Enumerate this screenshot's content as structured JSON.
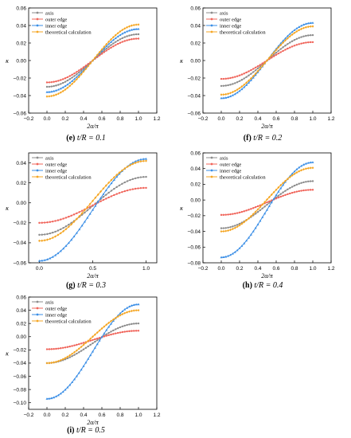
{
  "colors": {
    "axis": "#8c8c8c",
    "outer edge": "#f0645a",
    "inner edge": "#3a8ee6",
    "theoretical calculation": "#f5a623"
  },
  "chart_data": [
    {
      "type": "line",
      "caption_tag": "(e)",
      "caption_text": "t/R = 0.1",
      "xlabel": "2α/π",
      "ylabel": "κ",
      "xlim": [
        -0.2,
        1.2
      ],
      "xticks": [
        "−0.2",
        "0.0",
        "0.2",
        "0.4",
        "0.6",
        "0.8",
        "1.0",
        "1.2"
      ],
      "ylim": [
        -0.06,
        0.06
      ],
      "yticks": [
        "−0.06",
        "−0.04",
        "−0.02",
        "0.00",
        "0.02",
        "0.04",
        "0.06"
      ],
      "legend_position": "top-left",
      "series": [
        {
          "name": "axis",
          "start": -0.03,
          "end": 0.03
        },
        {
          "name": "outer edge",
          "start": -0.025,
          "end": 0.025
        },
        {
          "name": "inner edge",
          "start": -0.036,
          "end": 0.036
        },
        {
          "name": "theoretical calculation",
          "start": -0.041,
          "end": 0.041
        }
      ]
    },
    {
      "type": "line",
      "caption_tag": "(f)",
      "caption_text": "t/R = 0.2",
      "xlabel": "2α/π",
      "ylabel": "κ",
      "xlim": [
        -0.2,
        1.2
      ],
      "xticks": [
        "−0.2",
        "0.0",
        "0.2",
        "0.4",
        "0.6",
        "0.8",
        "1.0",
        "1.2"
      ],
      "ylim": [
        -0.06,
        0.06
      ],
      "yticks": [
        "−0.06",
        "−0.04",
        "−0.02",
        "0.00",
        "0.02",
        "0.04",
        "0.06"
      ],
      "legend_position": "top-left",
      "series": [
        {
          "name": "axis",
          "start": -0.029,
          "end": 0.029
        },
        {
          "name": "outer edge",
          "start": -0.021,
          "end": 0.021
        },
        {
          "name": "inner edge",
          "start": -0.043,
          "end": 0.043
        },
        {
          "name": "theoretical calculation",
          "start": -0.039,
          "end": 0.039
        }
      ]
    },
    {
      "type": "line",
      "caption_tag": "(g)",
      "caption_text": "t/R = 0.3",
      "xlabel": "2α/π",
      "ylabel": "κ",
      "xlim": [
        -0.1,
        1.1
      ],
      "xticks": [
        "0.0",
        "0.5",
        "1.0"
      ],
      "xtick_values": [
        0.0,
        0.5,
        1.0
      ],
      "ylim": [
        -0.06,
        0.05
      ],
      "yticks": [
        "−0.06",
        "−0.04",
        "−0.02",
        "0.00",
        "0.02",
        "0.04"
      ],
      "ytick_values": [
        -0.06,
        -0.04,
        -0.02,
        0.0,
        0.02,
        0.04
      ],
      "legend_position": "top-left",
      "series": [
        {
          "name": "axis",
          "start": -0.032,
          "end": 0.026
        },
        {
          "name": "outer edge",
          "start": -0.02,
          "end": 0.015
        },
        {
          "name": "inner edge",
          "start": -0.058,
          "end": 0.044
        },
        {
          "name": "theoretical calculation",
          "start": -0.038,
          "end": 0.042
        }
      ]
    },
    {
      "type": "line",
      "caption_tag": "(h)",
      "caption_text": "t/R = 0.4",
      "xlabel": "2α/π",
      "ylabel": "κ",
      "xlim": [
        -0.2,
        1.2
      ],
      "xticks": [
        "−0.2",
        "0.0",
        "0.2",
        "0.4",
        "0.6",
        "0.8",
        "1.0",
        "1.2"
      ],
      "ylim": [
        -0.08,
        0.06
      ],
      "yticks": [
        "−0.08",
        "−0.06",
        "−0.04",
        "−0.02",
        "0.00",
        "0.02",
        "0.04",
        "0.06"
      ],
      "legend_position": "top-left",
      "series": [
        {
          "name": "axis",
          "start": -0.036,
          "end": 0.024
        },
        {
          "name": "outer edge",
          "start": -0.019,
          "end": 0.013
        },
        {
          "name": "inner edge",
          "start": -0.073,
          "end": 0.048
        },
        {
          "name": "theoretical calculation",
          "start": -0.04,
          "end": 0.041
        }
      ]
    },
    {
      "type": "line",
      "caption_tag": "(i)",
      "caption_text": "t/R = 0.5",
      "xlabel": "2α/π",
      "ylabel": "κ",
      "xlim": [
        -0.2,
        1.2
      ],
      "xticks": [
        "−0.2",
        "0.0",
        "0.2",
        "0.4",
        "0.6",
        "0.8",
        "1.0",
        "1.2"
      ],
      "ylim": [
        -0.11,
        0.06
      ],
      "yticks": [
        "−0.10",
        "−0.08",
        "−0.06",
        "−0.04",
        "−0.02",
        "0.00",
        "0.02",
        "0.04",
        "0.06"
      ],
      "ytick_values": [
        -0.1,
        -0.08,
        -0.06,
        -0.04,
        -0.02,
        0.0,
        0.02,
        0.04,
        0.06
      ],
      "legend_position": "top-left",
      "series": [
        {
          "name": "axis",
          "start": -0.04,
          "end": 0.02
        },
        {
          "name": "outer edge",
          "start": -0.019,
          "end": 0.009
        },
        {
          "name": "inner edge",
          "start": -0.094,
          "end": 0.049
        },
        {
          "name": "theoretical calculation",
          "start": -0.04,
          "end": 0.04
        }
      ]
    }
  ]
}
